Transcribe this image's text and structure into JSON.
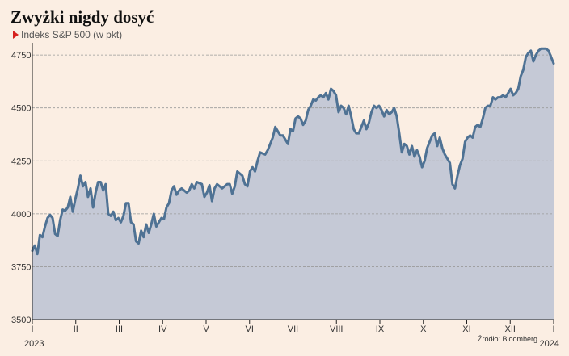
{
  "chart_data": {
    "type": "area",
    "title": "Zwyżki nigdy dosyć",
    "subtitle": "Indeks S&P 500 (w pkt)",
    "source": "Źródło: Bloomberg",
    "ylim": [
      3500,
      4800
    ],
    "yticks": [
      3500,
      3750,
      4000,
      4250,
      4500,
      4750
    ],
    "xticks": [
      "I",
      "II",
      "III",
      "IV",
      "V",
      "VI",
      "VII",
      "VIII",
      "IX",
      "X",
      "XI",
      "XII",
      "I"
    ],
    "year_labels": [
      "2023",
      "2024"
    ],
    "grid": true,
    "colors": {
      "line": "#4f7294",
      "fill": "#c5c9d6",
      "grid": "#9a9a9a",
      "accent": "#d6201d"
    },
    "series": [
      {
        "values": [
          3825,
          3850,
          3810,
          3900,
          3890,
          3940,
          3980,
          3995,
          3980,
          3905,
          3895,
          3970,
          4020,
          4015,
          4030,
          4080,
          4010,
          4070,
          4120,
          4180,
          4130,
          4150,
          4080,
          4120,
          4030,
          4100,
          4150,
          4150,
          4110,
          4140,
          4000,
          3990,
          4010,
          3970,
          3980,
          3960,
          3990,
          4050,
          4050,
          3960,
          3950,
          3870,
          3860,
          3920,
          3890,
          3950,
          3910,
          3950,
          4000,
          3940,
          3960,
          3980,
          3975,
          4030,
          4050,
          4110,
          4130,
          4090,
          4110,
          4120,
          4110,
          4100,
          4110,
          4140,
          4120,
          4150,
          4145,
          4140,
          4080,
          4100,
          4135,
          4060,
          4120,
          4140,
          4130,
          4120,
          4130,
          4140,
          4140,
          4095,
          4130,
          4200,
          4190,
          4180,
          4140,
          4130,
          4200,
          4220,
          4200,
          4250,
          4290,
          4285,
          4280,
          4300,
          4330,
          4360,
          4410,
          4390,
          4370,
          4370,
          4350,
          4330,
          4400,
          4390,
          4450,
          4460,
          4450,
          4420,
          4440,
          4490,
          4510,
          4540,
          4535,
          4550,
          4560,
          4550,
          4570,
          4540,
          4590,
          4580,
          4560,
          4480,
          4510,
          4500,
          4470,
          4510,
          4460,
          4400,
          4380,
          4380,
          4410,
          4440,
          4400,
          4430,
          4480,
          4510,
          4500,
          4510,
          4490,
          4460,
          4490,
          4470,
          4480,
          4500,
          4460,
          4380,
          4290,
          4330,
          4320,
          4280,
          4320,
          4270,
          4300,
          4270,
          4220,
          4250,
          4310,
          4340,
          4370,
          4380,
          4320,
          4360,
          4310,
          4280,
          4260,
          4240,
          4140,
          4120,
          4180,
          4230,
          4260,
          4340,
          4360,
          4370,
          4360,
          4410,
          4420,
          4410,
          4450,
          4500,
          4510,
          4510,
          4550,
          4540,
          4550,
          4550,
          4560,
          4550,
          4570,
          4590,
          4560,
          4570,
          4590,
          4650,
          4680,
          4740,
          4760,
          4770,
          4720,
          4750,
          4770,
          4780,
          4780,
          4780,
          4770,
          4740,
          4710
        ]
      }
    ]
  }
}
